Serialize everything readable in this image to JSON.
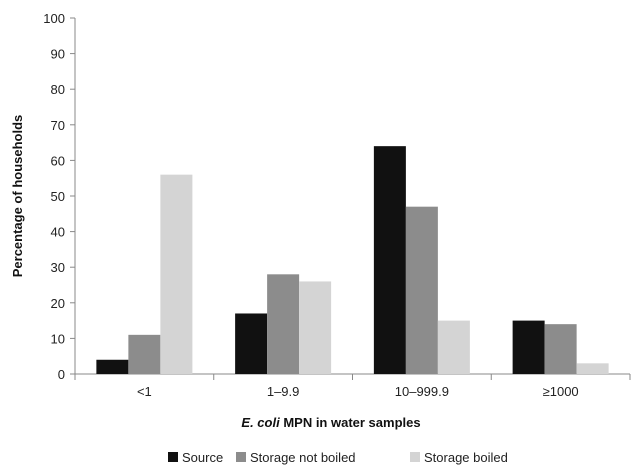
{
  "chart_data": {
    "type": "bar",
    "title": "",
    "xlabel_italic": "E. coli",
    "xlabel_rest": " MPN in water samples",
    "ylabel": "Percentage of households",
    "ylim": [
      0,
      100
    ],
    "yticks": [
      0,
      10,
      20,
      30,
      40,
      50,
      60,
      70,
      80,
      90,
      100
    ],
    "categories": [
      "<1",
      "1–9.9",
      "10–999.9",
      "≥1000"
    ],
    "series": [
      {
        "name": "Source",
        "color": "#111111",
        "values": [
          4,
          17,
          64,
          15
        ]
      },
      {
        "name": "Storage not boiled",
        "color": "#8c8c8c",
        "values": [
          11,
          28,
          47,
          14
        ]
      },
      {
        "name": "Storage boiled",
        "color": "#d4d4d4",
        "values": [
          56,
          26,
          15,
          3
        ]
      }
    ],
    "legend_position": "bottom",
    "grid": false
  }
}
